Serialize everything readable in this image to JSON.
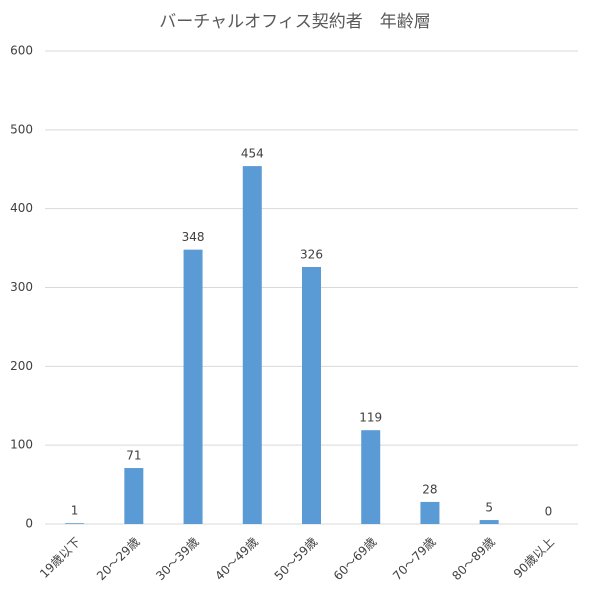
{
  "chart_data": {
    "type": "bar",
    "title": "バーチャルオフィス契約者　年齢層",
    "categories": [
      "19歳以下",
      "20～29歳",
      "30～39歳",
      "40～49歳",
      "50～59歳",
      "60～69歳",
      "70～79歳",
      "80～89歳",
      "90歳以上"
    ],
    "values": [
      1,
      71,
      348,
      454,
      326,
      119,
      28,
      5,
      0
    ],
    "color": "#5b9bd5",
    "ylim": [
      0,
      600
    ],
    "yticks": [
      0,
      100,
      200,
      300,
      400,
      500,
      600
    ],
    "grid": true
  }
}
